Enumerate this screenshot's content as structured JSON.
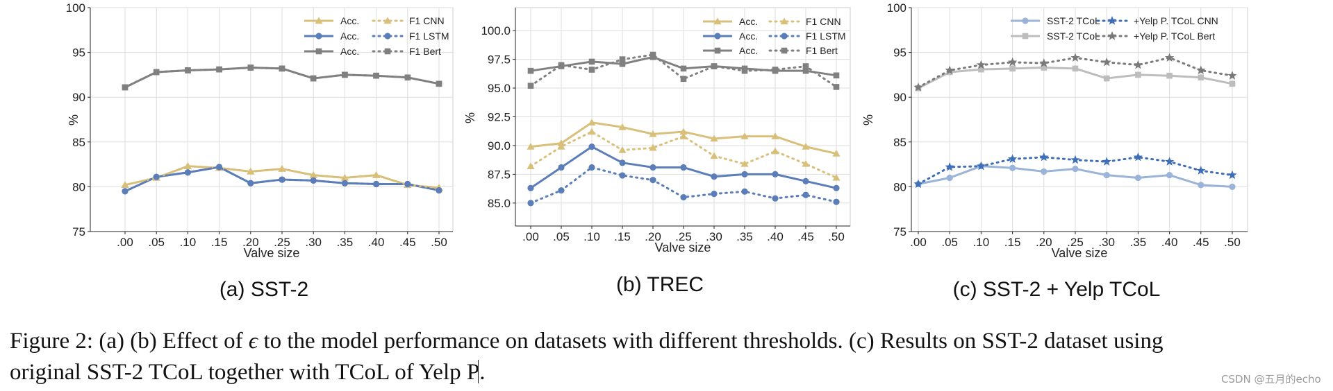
{
  "colors": {
    "cnn": "#d9c07a",
    "lstm": "#5b7db8",
    "bert": "#808080",
    "tcol_light": "#99b3d9",
    "tcol_gray": "#bdbdbd",
    "yelp_blue": "#3f6fb6",
    "yelp_gray": "#7a7a7a",
    "grid": "#dddddd",
    "axis": "#222222"
  },
  "chart_data": [
    {
      "id": "a",
      "type": "line",
      "subtitle": "(a) SST-2",
      "xlabel": "Valve size",
      "ylabel": "%",
      "categories": [
        ".00",
        ".05",
        ".10",
        ".15",
        ".20",
        ".25",
        ".30",
        ".35",
        ".40",
        ".45",
        ".50"
      ],
      "ylim": [
        75,
        100
      ],
      "yticks": [
        75,
        80,
        85,
        90,
        95,
        100
      ],
      "ytick_labels": [
        "75",
        "80",
        "85",
        "90",
        "95",
        "100"
      ],
      "grid": true,
      "legend_position": "top-right",
      "legend_columns": 2,
      "series": [
        {
          "name": "Acc.",
          "color": "#d9c07a",
          "marker": "triangle",
          "style": "solid",
          "values": [
            80.2,
            81.0,
            82.3,
            82.1,
            81.7,
            82.0,
            81.3,
            81.0,
            81.3,
            80.2,
            79.9
          ]
        },
        {
          "name": "Acc.",
          "color": "#5b7db8",
          "marker": "circle",
          "style": "solid",
          "values": [
            79.5,
            81.1,
            81.6,
            82.2,
            80.4,
            80.8,
            80.7,
            80.4,
            80.3,
            80.3,
            79.6
          ]
        },
        {
          "name": "Acc.",
          "color": "#808080",
          "marker": "square",
          "style": "solid",
          "values": [
            91.1,
            92.8,
            93.0,
            93.1,
            93.3,
            93.2,
            92.1,
            92.5,
            92.4,
            92.2,
            91.5
          ]
        },
        {
          "name": "F1 CNN",
          "color": "#d9c07a",
          "marker": "triangle",
          "style": "dotted",
          "values": [
            80.2,
            81.0,
            82.3,
            82.1,
            81.7,
            82.0,
            81.3,
            81.0,
            81.3,
            80.2,
            79.9
          ]
        },
        {
          "name": "F1 LSTM",
          "color": "#5b7db8",
          "marker": "circle",
          "style": "dotted",
          "values": [
            79.5,
            81.1,
            81.6,
            82.2,
            80.4,
            80.8,
            80.7,
            80.4,
            80.3,
            80.3,
            79.6
          ]
        },
        {
          "name": "F1 Bert",
          "color": "#808080",
          "marker": "square",
          "style": "dotted",
          "values": [
            91.1,
            92.8,
            93.0,
            93.1,
            93.3,
            93.2,
            92.1,
            92.5,
            92.4,
            92.2,
            91.5
          ]
        }
      ]
    },
    {
      "id": "b",
      "type": "line",
      "subtitle": "(b) TREC",
      "xlabel": "Valve size",
      "ylabel": "%",
      "categories": [
        ".00",
        ".05",
        ".10",
        ".15",
        ".20",
        ".25",
        ".30",
        ".35",
        ".40",
        ".45",
        ".50"
      ],
      "ylim": [
        83.0,
        102.0
      ],
      "yticks": [
        85.0,
        87.5,
        90.0,
        92.5,
        95.0,
        97.5,
        100.0
      ],
      "ytick_labels": [
        "85.0",
        "87.5",
        "90.0",
        "92.5",
        "95.0",
        "97.5",
        "100.0"
      ],
      "grid": true,
      "legend_position": "top-right",
      "legend_columns": 2,
      "series": [
        {
          "name": "Acc.",
          "color": "#d9c07a",
          "marker": "triangle",
          "style": "solid",
          "values": [
            89.9,
            90.2,
            92.0,
            91.6,
            91.0,
            91.2,
            90.6,
            90.8,
            90.8,
            89.9,
            89.3
          ]
        },
        {
          "name": "Acc.",
          "color": "#5b7db8",
          "marker": "circle",
          "style": "solid",
          "values": [
            86.3,
            88.1,
            89.9,
            88.5,
            88.1,
            88.1,
            87.3,
            87.5,
            87.5,
            86.9,
            86.3
          ]
        },
        {
          "name": "Acc.",
          "color": "#808080",
          "marker": "square",
          "style": "solid",
          "values": [
            96.5,
            96.9,
            97.3,
            97.1,
            97.7,
            96.7,
            96.9,
            96.7,
            96.5,
            96.5,
            96.1
          ]
        },
        {
          "name": "F1 CNN",
          "color": "#d9c07a",
          "marker": "triangle",
          "style": "dotted",
          "values": [
            88.2,
            89.9,
            91.2,
            89.6,
            89.8,
            90.8,
            89.1,
            88.4,
            89.5,
            88.4,
            87.2
          ]
        },
        {
          "name": "F1 LSTM",
          "color": "#5b7db8",
          "marker": "circle",
          "style": "dotted",
          "values": [
            85.0,
            86.1,
            88.1,
            87.4,
            87.0,
            85.5,
            85.8,
            86.0,
            85.4,
            85.7,
            85.1
          ]
        },
        {
          "name": "F1 Bert",
          "color": "#808080",
          "marker": "square",
          "style": "dotted",
          "values": [
            95.2,
            97.0,
            96.6,
            97.5,
            97.9,
            95.8,
            96.9,
            96.5,
            96.6,
            96.9,
            95.1
          ]
        }
      ]
    },
    {
      "id": "c",
      "type": "line",
      "subtitle": "(c) SST-2 + Yelp TCoL",
      "xlabel": "Valve size",
      "ylabel": "%",
      "categories": [
        ".00",
        ".05",
        ".10",
        ".15",
        ".20",
        ".25",
        ".30",
        ".35",
        ".40",
        ".45",
        ".50"
      ],
      "ylim": [
        75,
        100
      ],
      "yticks": [
        75,
        80,
        85,
        90,
        95,
        100
      ],
      "ytick_labels": [
        "75",
        "80",
        "85",
        "90",
        "95",
        "100"
      ],
      "grid": true,
      "legend_position": "top-right",
      "legend_columns": 2,
      "series": [
        {
          "name": "SST-2 TCoL",
          "color": "#99b3d9",
          "marker": "circle",
          "style": "solid",
          "values": [
            80.3,
            81.0,
            82.3,
            82.1,
            81.7,
            82.0,
            81.3,
            81.0,
            81.3,
            80.2,
            80.0
          ]
        },
        {
          "name": "SST-2 TCoL",
          "color": "#bdbdbd",
          "marker": "square",
          "style": "solid",
          "values": [
            91.0,
            92.8,
            93.1,
            93.2,
            93.3,
            93.2,
            92.1,
            92.5,
            92.4,
            92.2,
            91.5
          ]
        },
        {
          "name": "+Yelp P. TCoL CNN",
          "color": "#3f6fb6",
          "marker": "star",
          "style": "dotted",
          "values": [
            80.3,
            82.2,
            82.3,
            83.1,
            83.3,
            83.0,
            82.8,
            83.3,
            82.8,
            81.8,
            81.3
          ]
        },
        {
          "name": "+Yelp P. TCoL Bert",
          "color": "#7a7a7a",
          "marker": "star",
          "style": "dotted",
          "values": [
            91.1,
            93.0,
            93.6,
            93.9,
            93.8,
            94.4,
            93.9,
            93.6,
            94.4,
            93.0,
            92.4
          ]
        }
      ]
    }
  ],
  "caption": {
    "line1_before_math": "Figure 2: (a) (b) Effect of ",
    "math_symbol": "ϵ",
    "line1_after_math": " to the model performance on datasets with different thresholds. (c) Results on SST-2 dataset using",
    "line2_before_cursor": "original SST-2 TCoL together with TCoL of Yelp P",
    "line2_after_cursor": "."
  },
  "watermark": "CSDN @五月的echo"
}
